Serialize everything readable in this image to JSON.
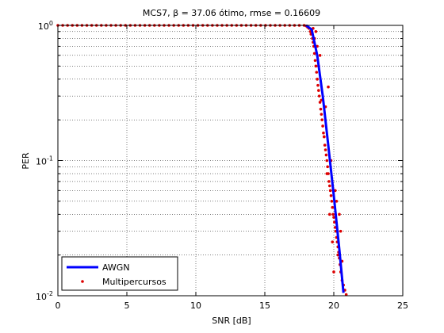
{
  "chart_data": {
    "type": "scatter",
    "title": "MCS7, β = 37.06 ótimo, rmse = 0.16609",
    "xlabel": "SNR [dB]",
    "ylabel": "PER",
    "xlim": [
      0,
      25
    ],
    "ylim": [
      0.01,
      1
    ],
    "yscale": "log",
    "grid": "major-and-minor-y, major-x",
    "legend_position": "bottom-left",
    "x_ticks": [
      "0",
      "5",
      "10",
      "15",
      "20",
      "25"
    ],
    "y_ticks": [
      {
        "base": "10",
        "exp": "0",
        "value": 1
      },
      {
        "base": "10",
        "exp": "-1",
        "value": 0.1
      },
      {
        "base": "10",
        "exp": "-2",
        "value": 0.01
      }
    ],
    "series": [
      {
        "name": "AWGN",
        "style": "line",
        "color": "#0000ff",
        "x": [
          18.0,
          18.4,
          18.8,
          19.2,
          19.6,
          20.0,
          20.4,
          20.7
        ],
        "y": [
          1.0,
          0.93,
          0.6,
          0.3,
          0.13,
          0.055,
          0.022,
          0.0105
        ]
      },
      {
        "name": "Multipercursos",
        "style": "markers",
        "color": "#dd0000",
        "x": [
          0.0,
          0.35,
          0.7,
          1.05,
          1.4,
          1.75,
          2.1,
          2.45,
          2.8,
          3.15,
          3.5,
          3.85,
          4.2,
          4.55,
          4.9,
          5.25,
          5.6,
          5.95,
          6.3,
          6.65,
          7.0,
          7.35,
          7.7,
          8.05,
          8.4,
          8.75,
          9.1,
          9.45,
          9.8,
          10.15,
          10.5,
          10.85,
          11.2,
          11.55,
          11.9,
          12.25,
          12.6,
          12.95,
          13.3,
          13.65,
          14.0,
          14.35,
          14.7,
          15.05,
          15.4,
          15.75,
          16.1,
          16.45,
          16.8,
          17.15,
          17.5,
          17.85,
          18.0,
          18.1,
          18.2,
          18.3,
          18.35,
          18.45,
          18.5,
          18.55,
          18.6,
          18.65,
          18.7,
          18.75,
          18.8,
          18.85,
          18.9,
          18.95,
          19.0,
          19.05,
          19.1,
          19.15,
          19.2,
          19.25,
          19.3,
          19.35,
          19.4,
          19.45,
          19.5,
          19.55,
          19.6,
          19.65,
          19.7,
          19.75,
          19.8,
          19.85,
          19.9,
          19.95,
          20.0,
          20.05,
          20.1,
          20.15,
          20.2,
          20.25,
          20.3,
          20.35,
          20.4,
          20.45,
          20.5,
          20.6,
          20.7,
          20.8,
          20.9,
          18.6,
          18.9,
          19.1,
          19.3,
          19.5,
          19.7,
          19.9,
          20.1,
          20.3,
          20.5,
          18.7,
          19.0,
          19.4,
          19.8,
          20.2,
          20.6,
          18.5,
          19.6,
          20.0,
          20.4,
          18.8
        ],
        "y": [
          1,
          1,
          1,
          1,
          1,
          1,
          1,
          1,
          1,
          1,
          1,
          1,
          1,
          1,
          1,
          1,
          1,
          1,
          1,
          1,
          1,
          1,
          1,
          1,
          1,
          1,
          1,
          1,
          1,
          1,
          1,
          1,
          1,
          1,
          1,
          1,
          1,
          1,
          1,
          1,
          1,
          1,
          1,
          1,
          1,
          1,
          1,
          1,
          1,
          1,
          1,
          1,
          0.99,
          0.97,
          0.95,
          0.9,
          0.86,
          0.8,
          0.75,
          0.7,
          0.62,
          0.55,
          0.5,
          0.45,
          0.4,
          0.36,
          0.33,
          0.3,
          0.27,
          0.24,
          0.22,
          0.2,
          0.18,
          0.16,
          0.15,
          0.13,
          0.12,
          0.11,
          0.1,
          0.09,
          0.08,
          0.07,
          0.065,
          0.06,
          0.055,
          0.05,
          0.045,
          0.04,
          0.038,
          0.035,
          0.032,
          0.03,
          0.027,
          0.025,
          0.023,
          0.021,
          0.019,
          0.017,
          0.015,
          0.013,
          0.012,
          0.011,
          0.0102,
          0.8,
          0.5,
          0.28,
          0.15,
          0.08,
          0.04,
          0.025,
          0.06,
          0.02,
          0.03,
          0.9,
          0.6,
          0.25,
          0.1,
          0.05,
          0.018,
          0.95,
          0.35,
          0.015,
          0.04,
          0.7
        ]
      }
    ]
  }
}
